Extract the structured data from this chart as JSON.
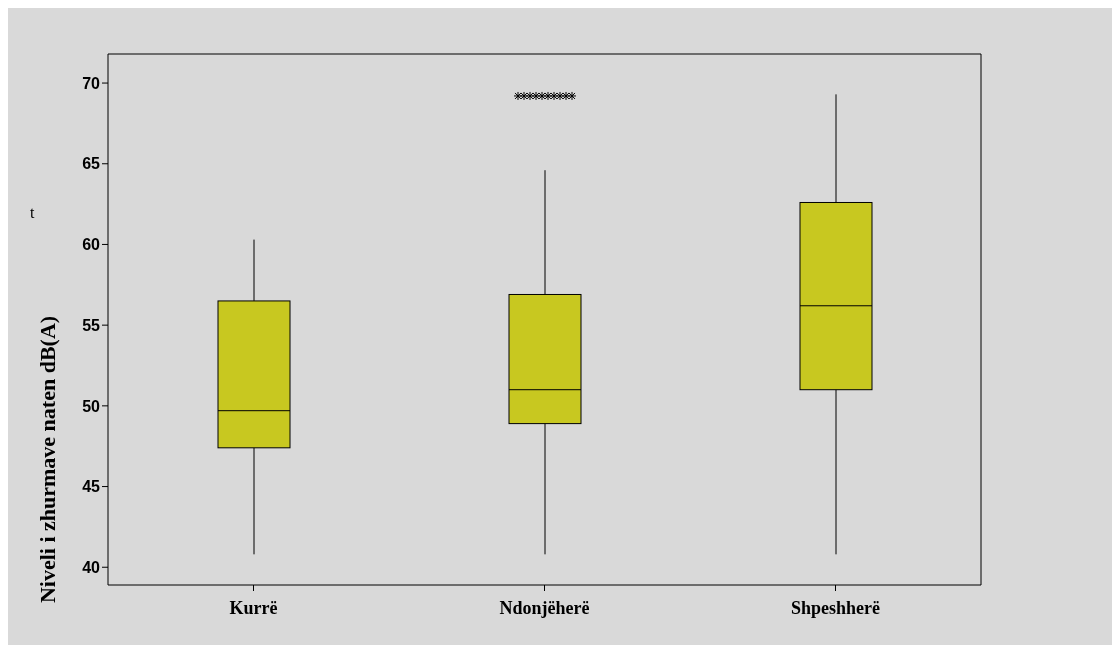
{
  "chart_data": {
    "type": "box",
    "ylabel": "Niveli i zhurmave naten dB(A)",
    "annotations": [
      "t"
    ],
    "categories": [
      "Kurrë",
      "Ndonjëherë",
      "Shpeshherë"
    ],
    "color": "#c8c820",
    "boxes": [
      {
        "low": 40.8,
        "q1": 47.4,
        "median": 49.7,
        "q3": 56.5,
        "high": 60.3
      },
      {
        "low": 40.8,
        "q1": 48.9,
        "median": 51.0,
        "q3": 56.9,
        "high": 64.6,
        "outliers": [
          69.2,
          69.2,
          69.2,
          69.2,
          69.2,
          69.2,
          69.2,
          69.2,
          69.2,
          69.2
        ]
      },
      {
        "low": 40.8,
        "q1": 51.0,
        "median": 56.2,
        "q3": 62.6,
        "high": 69.3
      }
    ],
    "ylim": [
      38.9,
      71.8
    ],
    "yticks": [
      40,
      45,
      50,
      55,
      60,
      65,
      70
    ]
  }
}
